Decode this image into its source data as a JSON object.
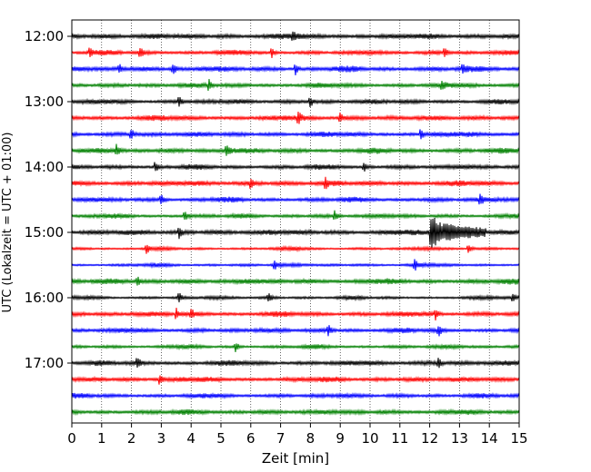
{
  "chart_data": {
    "type": "line",
    "title": "",
    "xlabel": "Zeit  [min]",
    "ylabel": "UTC (Lokalzeit = UTC + 01:00)",
    "xlim": [
      0,
      15
    ],
    "x_ticks": [
      0,
      1,
      2,
      3,
      4,
      5,
      6,
      7,
      8,
      9,
      10,
      11,
      12,
      13,
      14,
      15
    ],
    "x_tick_labels": [
      "0",
      "1",
      "2",
      "3",
      "4",
      "5",
      "6",
      "7",
      "8",
      "9",
      "10",
      "11",
      "12",
      "13",
      "14",
      "15"
    ],
    "y_tick_labels": [
      "12:00",
      "13:00",
      "14:00",
      "15:00",
      "16:00",
      "17:00"
    ],
    "y_tick_traces": [
      0,
      4,
      8,
      12,
      16,
      20
    ],
    "grid": {
      "x": true,
      "y": false,
      "style": "dotted"
    },
    "trace_colors": [
      "#000000",
      "#ff0000",
      "#0000ff",
      "#008000"
    ],
    "traces": [
      {
        "start": "12:00",
        "color": "#000000",
        "events": [
          7.4
        ]
      },
      {
        "start": "12:15",
        "color": "#ff0000",
        "events": [
          0.6,
          2.3,
          6.7,
          12.5
        ]
      },
      {
        "start": "12:30",
        "color": "#0000ff",
        "events": [
          1.6,
          3.4,
          7.5,
          13.1
        ]
      },
      {
        "start": "12:45",
        "color": "#008000",
        "events": [
          4.6,
          12.4
        ]
      },
      {
        "start": "13:00",
        "color": "#000000",
        "events": [
          3.6,
          8.0
        ]
      },
      {
        "start": "13:15",
        "color": "#ff0000",
        "events": [
          7.6,
          9.0
        ]
      },
      {
        "start": "13:30",
        "color": "#0000ff",
        "events": [
          2.0,
          11.7
        ]
      },
      {
        "start": "13:45",
        "color": "#008000",
        "events": [
          1.5,
          5.2
        ]
      },
      {
        "start": "14:00",
        "color": "#000000",
        "events": [
          2.8,
          9.8
        ]
      },
      {
        "start": "14:15",
        "color": "#ff0000",
        "events": [
          6.0,
          8.5
        ]
      },
      {
        "start": "14:30",
        "color": "#0000ff",
        "events": [
          3.0,
          13.7
        ]
      },
      {
        "start": "14:45",
        "color": "#008000",
        "events": [
          3.8,
          8.8
        ]
      },
      {
        "start": "15:00",
        "color": "#000000",
        "events": [
          3.6,
          12.1
        ]
      },
      {
        "start": "15:15",
        "color": "#ff0000",
        "events": [
          2.5,
          13.3
        ]
      },
      {
        "start": "15:30",
        "color": "#0000ff",
        "events": [
          6.8,
          11.5
        ]
      },
      {
        "start": "15:45",
        "color": "#008000",
        "events": [
          2.2
        ]
      },
      {
        "start": "16:00",
        "color": "#000000",
        "events": [
          3.6,
          6.6,
          14.8
        ]
      },
      {
        "start": "16:15",
        "color": "#ff0000",
        "events": [
          3.5,
          4.0,
          12.2
        ]
      },
      {
        "start": "16:30",
        "color": "#0000ff",
        "events": [
          8.6,
          12.3
        ]
      },
      {
        "start": "16:45",
        "color": "#008000",
        "events": [
          5.5
        ]
      },
      {
        "start": "17:00",
        "color": "#000000",
        "events": [
          2.2,
          12.3
        ]
      },
      {
        "start": "17:15",
        "color": "#ff0000",
        "events": [
          2.95
        ]
      },
      {
        "start": "17:30",
        "color": "#0000ff",
        "events": []
      },
      {
        "start": "17:45",
        "color": "#008000",
        "events": []
      }
    ],
    "major_event": {
      "trace_start": "15:00",
      "onset_min": 12.0,
      "duration_min": 1.9
    }
  }
}
